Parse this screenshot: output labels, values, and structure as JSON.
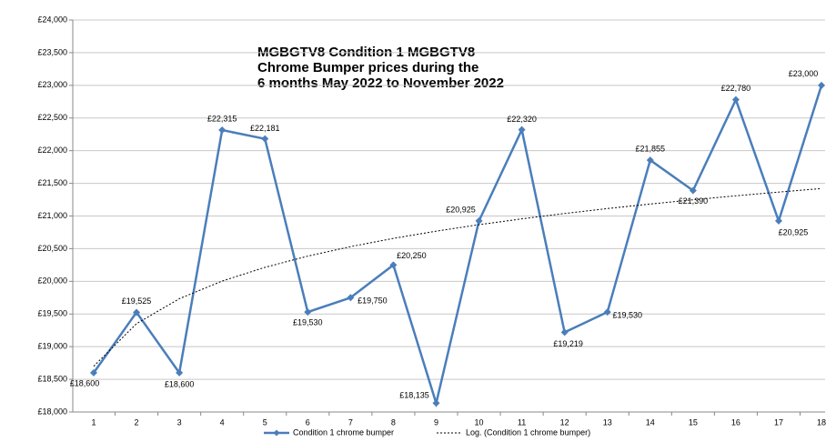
{
  "chart_data": {
    "type": "line",
    "title_lines": [
      "MGBGTV8 Condition 1 MGBGTV8",
      "Chrome Bumper prices during the",
      "6 months May 2022 to November 2022"
    ],
    "categories": [
      1,
      2,
      3,
      4,
      5,
      6,
      7,
      8,
      9,
      10,
      11,
      12,
      13,
      14,
      15,
      16,
      17,
      18
    ],
    "series": [
      {
        "name": "Condition 1 chrome bumper",
        "color": "#4a7ebb",
        "values": [
          18600,
          19525,
          18600,
          22315,
          22181,
          19530,
          19750,
          20250,
          18135,
          20925,
          22320,
          19219,
          19530,
          21855,
          21390,
          22780,
          20925,
          23000
        ],
        "value_labels": [
          "£18,600",
          "£19,525",
          "£18,600",
          "£22,315",
          "£22,181",
          "£19,530",
          "£19,750",
          "£20,250",
          "£18,135",
          "£20,925",
          "£22,320",
          "£19,219",
          "£19,530",
          "£21,855",
          "£21,390",
          "£22,780",
          "£20,925",
          "£23,000"
        ]
      },
      {
        "name": "Log. (Condition 1 chrome bumper)",
        "color": "#000000",
        "dashed": true,
        "values": [
          18700,
          19352,
          19734,
          20004,
          20214,
          20386,
          20531,
          20657,
          20768,
          20867,
          20956,
          21038,
          21114,
          21183,
          21248,
          21309,
          21366,
          21420
        ]
      }
    ],
    "ylim": [
      18000,
      24000
    ],
    "yticks": [
      {
        "value": 18000,
        "label": "£18,000"
      },
      {
        "value": 18500,
        "label": "£18,500"
      },
      {
        "value": 19000,
        "label": "£19,000"
      },
      {
        "value": 19500,
        "label": "£19,500"
      },
      {
        "value": 20000,
        "label": "£20,000"
      },
      {
        "value": 20500,
        "label": "£20,500"
      },
      {
        "value": 21000,
        "label": "£21,000"
      },
      {
        "value": 21500,
        "label": "£21,500"
      },
      {
        "value": 22000,
        "label": "£22,000"
      },
      {
        "value": 22500,
        "label": "£22,500"
      },
      {
        "value": 23000,
        "label": "£23,000"
      },
      {
        "value": 23500,
        "label": "£23,500"
      },
      {
        "value": 24000,
        "label": "£24,000"
      }
    ],
    "grid": true
  }
}
